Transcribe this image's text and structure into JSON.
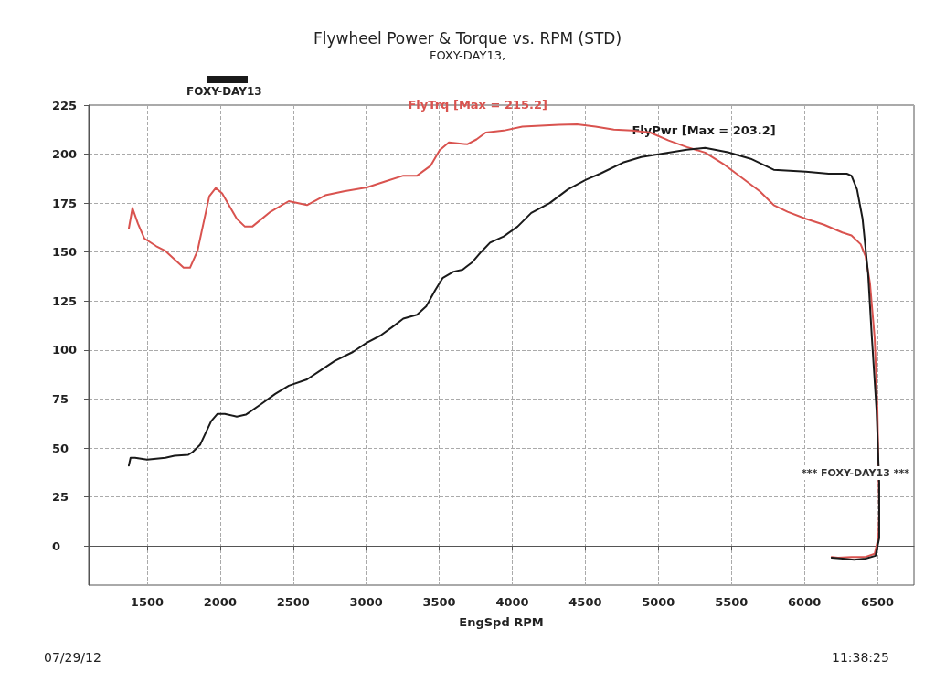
{
  "chart_data": {
    "type": "line",
    "title": "Flywheel Power & Torque vs. RPM (STD)",
    "subtitle": "FOXY-DAY13,",
    "xlabel": "EngSpd RPM",
    "xlim": [
      1100,
      6750
    ],
    "xticks": [
      1500,
      2000,
      2500,
      3000,
      3500,
      4000,
      4500,
      5000,
      5500,
      6000,
      6500
    ],
    "ylim": [
      -20,
      225
    ],
    "yticks": [
      0,
      25,
      50,
      75,
      100,
      125,
      150,
      175,
      200,
      225
    ],
    "grid": true,
    "legend": false,
    "marker": "none",
    "line_style": "solid",
    "annotations": [
      "FOXY-DAY13",
      "*** FOXY-DAY13 ***",
      "07/29/12",
      "11:38:25"
    ],
    "series": [
      {
        "name": "FlyTrq [Max = 215.2]",
        "color": "#d9534f",
        "x": [
          1375,
          1400,
          1437,
          1481,
          1563,
          1625,
          1750,
          1794,
          1845,
          1926,
          1970,
          2014,
          2114,
          2170,
          2220,
          2345,
          2470,
          2595,
          2720,
          2847,
          3004,
          3129,
          3254,
          3348,
          3440,
          3503,
          3566,
          3691,
          3755,
          3818,
          3941,
          4069,
          4194,
          4319,
          4444,
          4570,
          4695,
          4820,
          4945,
          5070,
          5195,
          5320,
          5445,
          5570,
          5695,
          5790,
          5884,
          6009,
          6134,
          6259,
          6322,
          6385,
          6418,
          6449,
          6481,
          6500,
          6512,
          6506,
          6481,
          6418,
          6322,
          6230,
          6186
        ],
        "values": [
          162,
          172.5,
          164.6,
          157,
          153,
          150.6,
          142,
          142,
          150.6,
          178.5,
          182.7,
          180,
          167,
          163,
          163,
          170.6,
          176,
          174,
          179,
          181,
          183,
          186,
          189,
          189,
          194,
          202,
          206,
          205,
          207.5,
          211,
          212,
          214,
          214.5,
          215,
          215.2,
          214,
          212.5,
          212,
          211,
          207,
          203.6,
          200.8,
          195,
          188,
          181,
          174,
          170.6,
          167,
          164,
          160,
          158.5,
          154,
          148,
          134,
          106,
          69,
          18,
          4,
          -4,
          -5.6,
          -5.6,
          -6,
          -5.6
        ]
      },
      {
        "name": "FlyPwr [Max = 203.2]",
        "color": "#1a1a1a",
        "x": [
          1375,
          1387,
          1418,
          1500,
          1625,
          1688,
          1782,
          1813,
          1863,
          1939,
          1982,
          2032,
          2114,
          2176,
          2283,
          2377,
          2470,
          2595,
          2690,
          2784,
          2909,
          3004,
          3098,
          3192,
          3254,
          3348,
          3411,
          3473,
          3523,
          3598,
          3660,
          3723,
          3786,
          3848,
          3941,
          4036,
          4130,
          4256,
          4381,
          4507,
          4601,
          4758,
          4883,
          5039,
          5195,
          5320,
          5476,
          5633,
          5790,
          6009,
          6166,
          6290,
          6322,
          6360,
          6398,
          6436,
          6462,
          6494,
          6512,
          6512,
          6487,
          6418,
          6340,
          6262,
          6186
        ],
        "values": [
          41,
          45,
          45,
          44,
          45,
          46,
          46.5,
          48,
          51.6,
          63.7,
          67.4,
          67.4,
          66,
          67,
          72.5,
          77.6,
          81.8,
          85,
          89.7,
          94.4,
          99,
          103.7,
          107.4,
          112.5,
          116,
          118,
          122.3,
          130.6,
          136.7,
          140,
          141,
          144.6,
          150,
          154.8,
          158,
          163,
          170,
          175,
          182,
          187,
          190,
          195.7,
          198.5,
          200.4,
          202.2,
          203.2,
          201,
          197.6,
          192,
          191,
          190,
          190,
          189,
          182,
          167,
          139,
          106,
          69,
          32,
          4,
          -5,
          -6.5,
          -7,
          -6.5,
          -6
        ]
      }
    ]
  }
}
